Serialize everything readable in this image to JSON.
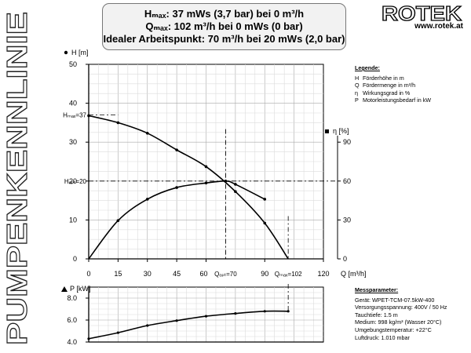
{
  "side_title": "PUMPENKENNLINIE",
  "header": {
    "line1": "Hₘₐₓ: 37 mWs (3,7 bar) bei 0 m³/h",
    "line2": "Qₘₐₓ: 102 m³/h bei 0 mWs (0 bar)",
    "line3": "Idealer Arbeitspunkt: 70 m³/h bei 20 mWs (2,0 bar)"
  },
  "brand": {
    "logo": "ROTEK",
    "url": "www.rotek.at"
  },
  "legend": {
    "title": "Legende:",
    "items": [
      {
        "sym": "H",
        "text": "Förderhöhe in m"
      },
      {
        "sym": "Q",
        "text": "Fördermenge in m³/h"
      },
      {
        "sym": "η",
        "text": "Wirkungsgrad in %"
      },
      {
        "sym": "P",
        "text": "Motorleistungsbedarf in kW"
      }
    ]
  },
  "params": {
    "title": "Messparameter:",
    "items": [
      "Gerät: WPET-TCM-07.5kW-400",
      "Versorgungsspannung: 400V / 50 Hz",
      "Tauchtiefe: 1.5 m",
      "Medium: 998 kg/m³ (Wasser 20°C)",
      "Umgebungstemperatur: +22°C",
      "Luftdruck: 1.010 mbar"
    ]
  },
  "chart_data": [
    {
      "type": "line",
      "name": "main",
      "xlabel": "Q [m³/h]",
      "ylabel_left": "H [m]",
      "ylabel_right": "η [%]",
      "xlim": [
        0,
        120
      ],
      "ylim_left": [
        0,
        50
      ],
      "ylim_right": [
        0,
        150
      ],
      "x_ticks": [
        0,
        15,
        30,
        45,
        60,
        90,
        120
      ],
      "y_ticks_left": [
        0,
        10,
        20,
        30,
        40,
        50
      ],
      "y_ticks_right": [
        0,
        30,
        60,
        90
      ],
      "grid": true,
      "annotations": {
        "hmax_label": "Hₘₐₓ=37",
        "hmax_value": 37,
        "hopt_label": "Hₒₚₜ=20",
        "hopt_value": 20,
        "qopt_label": "Qₒₚₜ=70",
        "qopt_value": 70,
        "qmax_label": "Qₘₐₓ=102",
        "qmax_value": 102
      },
      "series": [
        {
          "name": "H",
          "axis": "left",
          "x": [
            0,
            15,
            30,
            45,
            60,
            75,
            90,
            102
          ],
          "y": [
            36.8,
            35.0,
            32.3,
            28.0,
            23.7,
            17.3,
            9.2,
            0
          ],
          "markers": true
        },
        {
          "name": "η",
          "axis": "right",
          "x": [
            0,
            15,
            30,
            45,
            60,
            70,
            75,
            90
          ],
          "y": [
            0,
            29.5,
            46,
            55,
            58.5,
            60,
            57.5,
            46
          ],
          "markers": true
        }
      ]
    },
    {
      "type": "line",
      "name": "power",
      "ylabel": "P [kW]",
      "xlim": [
        0,
        120
      ],
      "ylim": [
        4.0,
        9.0
      ],
      "y_ticks": [
        4.0,
        6.0,
        8.0
      ],
      "grid": true,
      "series": [
        {
          "name": "P",
          "x": [
            0,
            15,
            30,
            45,
            60,
            75,
            90,
            102
          ],
          "y": [
            4.3,
            4.85,
            5.5,
            5.95,
            6.35,
            6.6,
            6.8,
            6.8
          ],
          "markers": true
        }
      ]
    }
  ]
}
